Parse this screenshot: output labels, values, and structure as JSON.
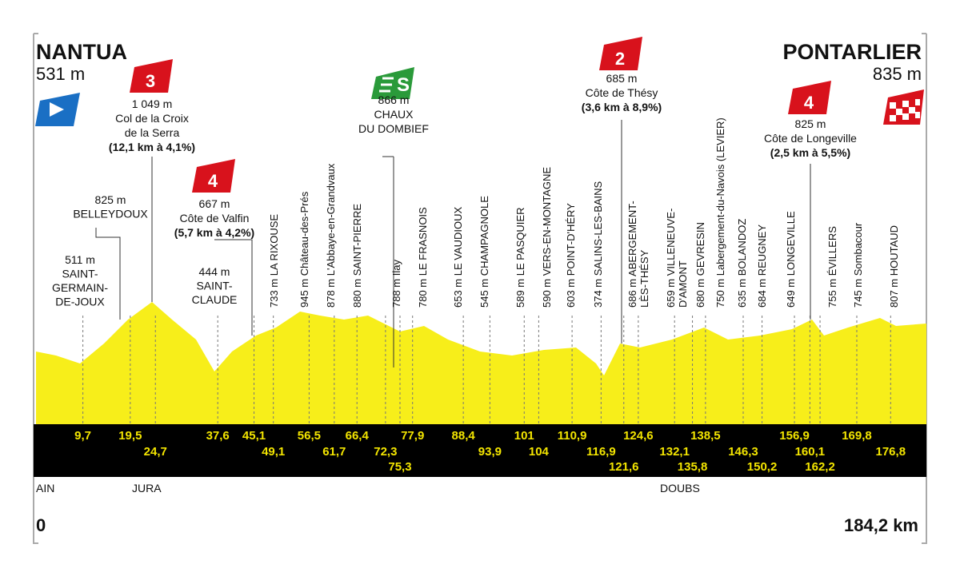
{
  "start": {
    "town": "NANTUA",
    "altitude": "531 m"
  },
  "finish": {
    "town": "PONTARLIER",
    "altitude": "835 m"
  },
  "climbs": [
    {
      "category": "3",
      "altitude": "1 049 m",
      "name": [
        "Col de la Croix",
        "de la Serra"
      ],
      "detail": "(12,1 km à 4,1%)"
    },
    {
      "category": "4",
      "altitude": "667 m",
      "name": [
        "Côte de Valfin"
      ],
      "detail": "(5,7 km à 4,2%)"
    },
    {
      "category": "2",
      "altitude": "685 m",
      "name": [
        "Côte de Thésy"
      ],
      "detail": "(3,6 km à 8,9%)"
    },
    {
      "category": "4",
      "altitude": "825 m",
      "name": [
        "Côte de Longeville"
      ],
      "detail": "(2,5 km à 5,5%)"
    }
  ],
  "sprint": {
    "altitude": "866 m",
    "name": [
      "CHAUX",
      "DU DOMBIEF"
    ]
  },
  "places": [
    [
      "511 m",
      "SAINT-",
      "GERMAIN-",
      "DE-JOUX"
    ],
    [
      "825 m",
      "BELLEYDOUX"
    ],
    [
      "444 m",
      "SAINT-",
      "CLAUDE"
    ]
  ],
  "vertical_places": [
    [
      "733 m LA RIXOUSE"
    ],
    [
      "945 m Château-des-Prés"
    ],
    [
      "878 m L'Abbaye-en-Grandvaux"
    ],
    [
      "880 m SAINT-PIERRE"
    ],
    [
      "788 m Ilay"
    ],
    [
      "780 m LE FRASNOIS"
    ],
    [
      "653 m LE VAUDIOUX"
    ],
    [
      "545 m CHAMPAGNOLE"
    ],
    [
      "589 m LE PASQUIER"
    ],
    [
      "590 m VERS-EN-MONTAGNE"
    ],
    [
      "603 m POINT-D'HÉRY"
    ],
    [
      "374 m SALINS-LES-BAINS"
    ],
    [
      "686 m ABERGEMENT-",
      "LÈS-THÉSY"
    ],
    [
      "659 m VILLENEUVE-",
      "D'AMONT"
    ],
    [
      "680 m GEVRESIN"
    ],
    [
      "750 m Labergement-du-Navois (LEVIER)"
    ],
    [
      "635 m BOLANDOZ"
    ],
    [
      "684 m REUGNEY"
    ],
    [
      "649 m LONGEVILLE"
    ],
    [
      "755 m ÉVILLERS"
    ],
    [
      "745 m Sombacour"
    ],
    [
      "807 m HOUTAUD"
    ]
  ],
  "km_markers": [
    [
      "9,7",
      "19,5",
      "37,6",
      "45,1",
      "56,5",
      "66,4",
      "77,9",
      "88,4",
      "101",
      "110,9",
      "124,6",
      "138,5",
      "156,9",
      "169,8"
    ],
    [
      "24,7",
      "49,1",
      "61,7",
      "72,3",
      "93,9",
      "104",
      "116,9",
      "132,1",
      "146,3",
      "160,1",
      "176,8"
    ],
    [
      "75,3",
      "121,6",
      "135,8",
      "150,2",
      "162,2"
    ]
  ],
  "departments": [
    "AIN",
    "JURA",
    "DOUBS"
  ],
  "distance": {
    "start": "0",
    "end": "184,2 km"
  }
}
